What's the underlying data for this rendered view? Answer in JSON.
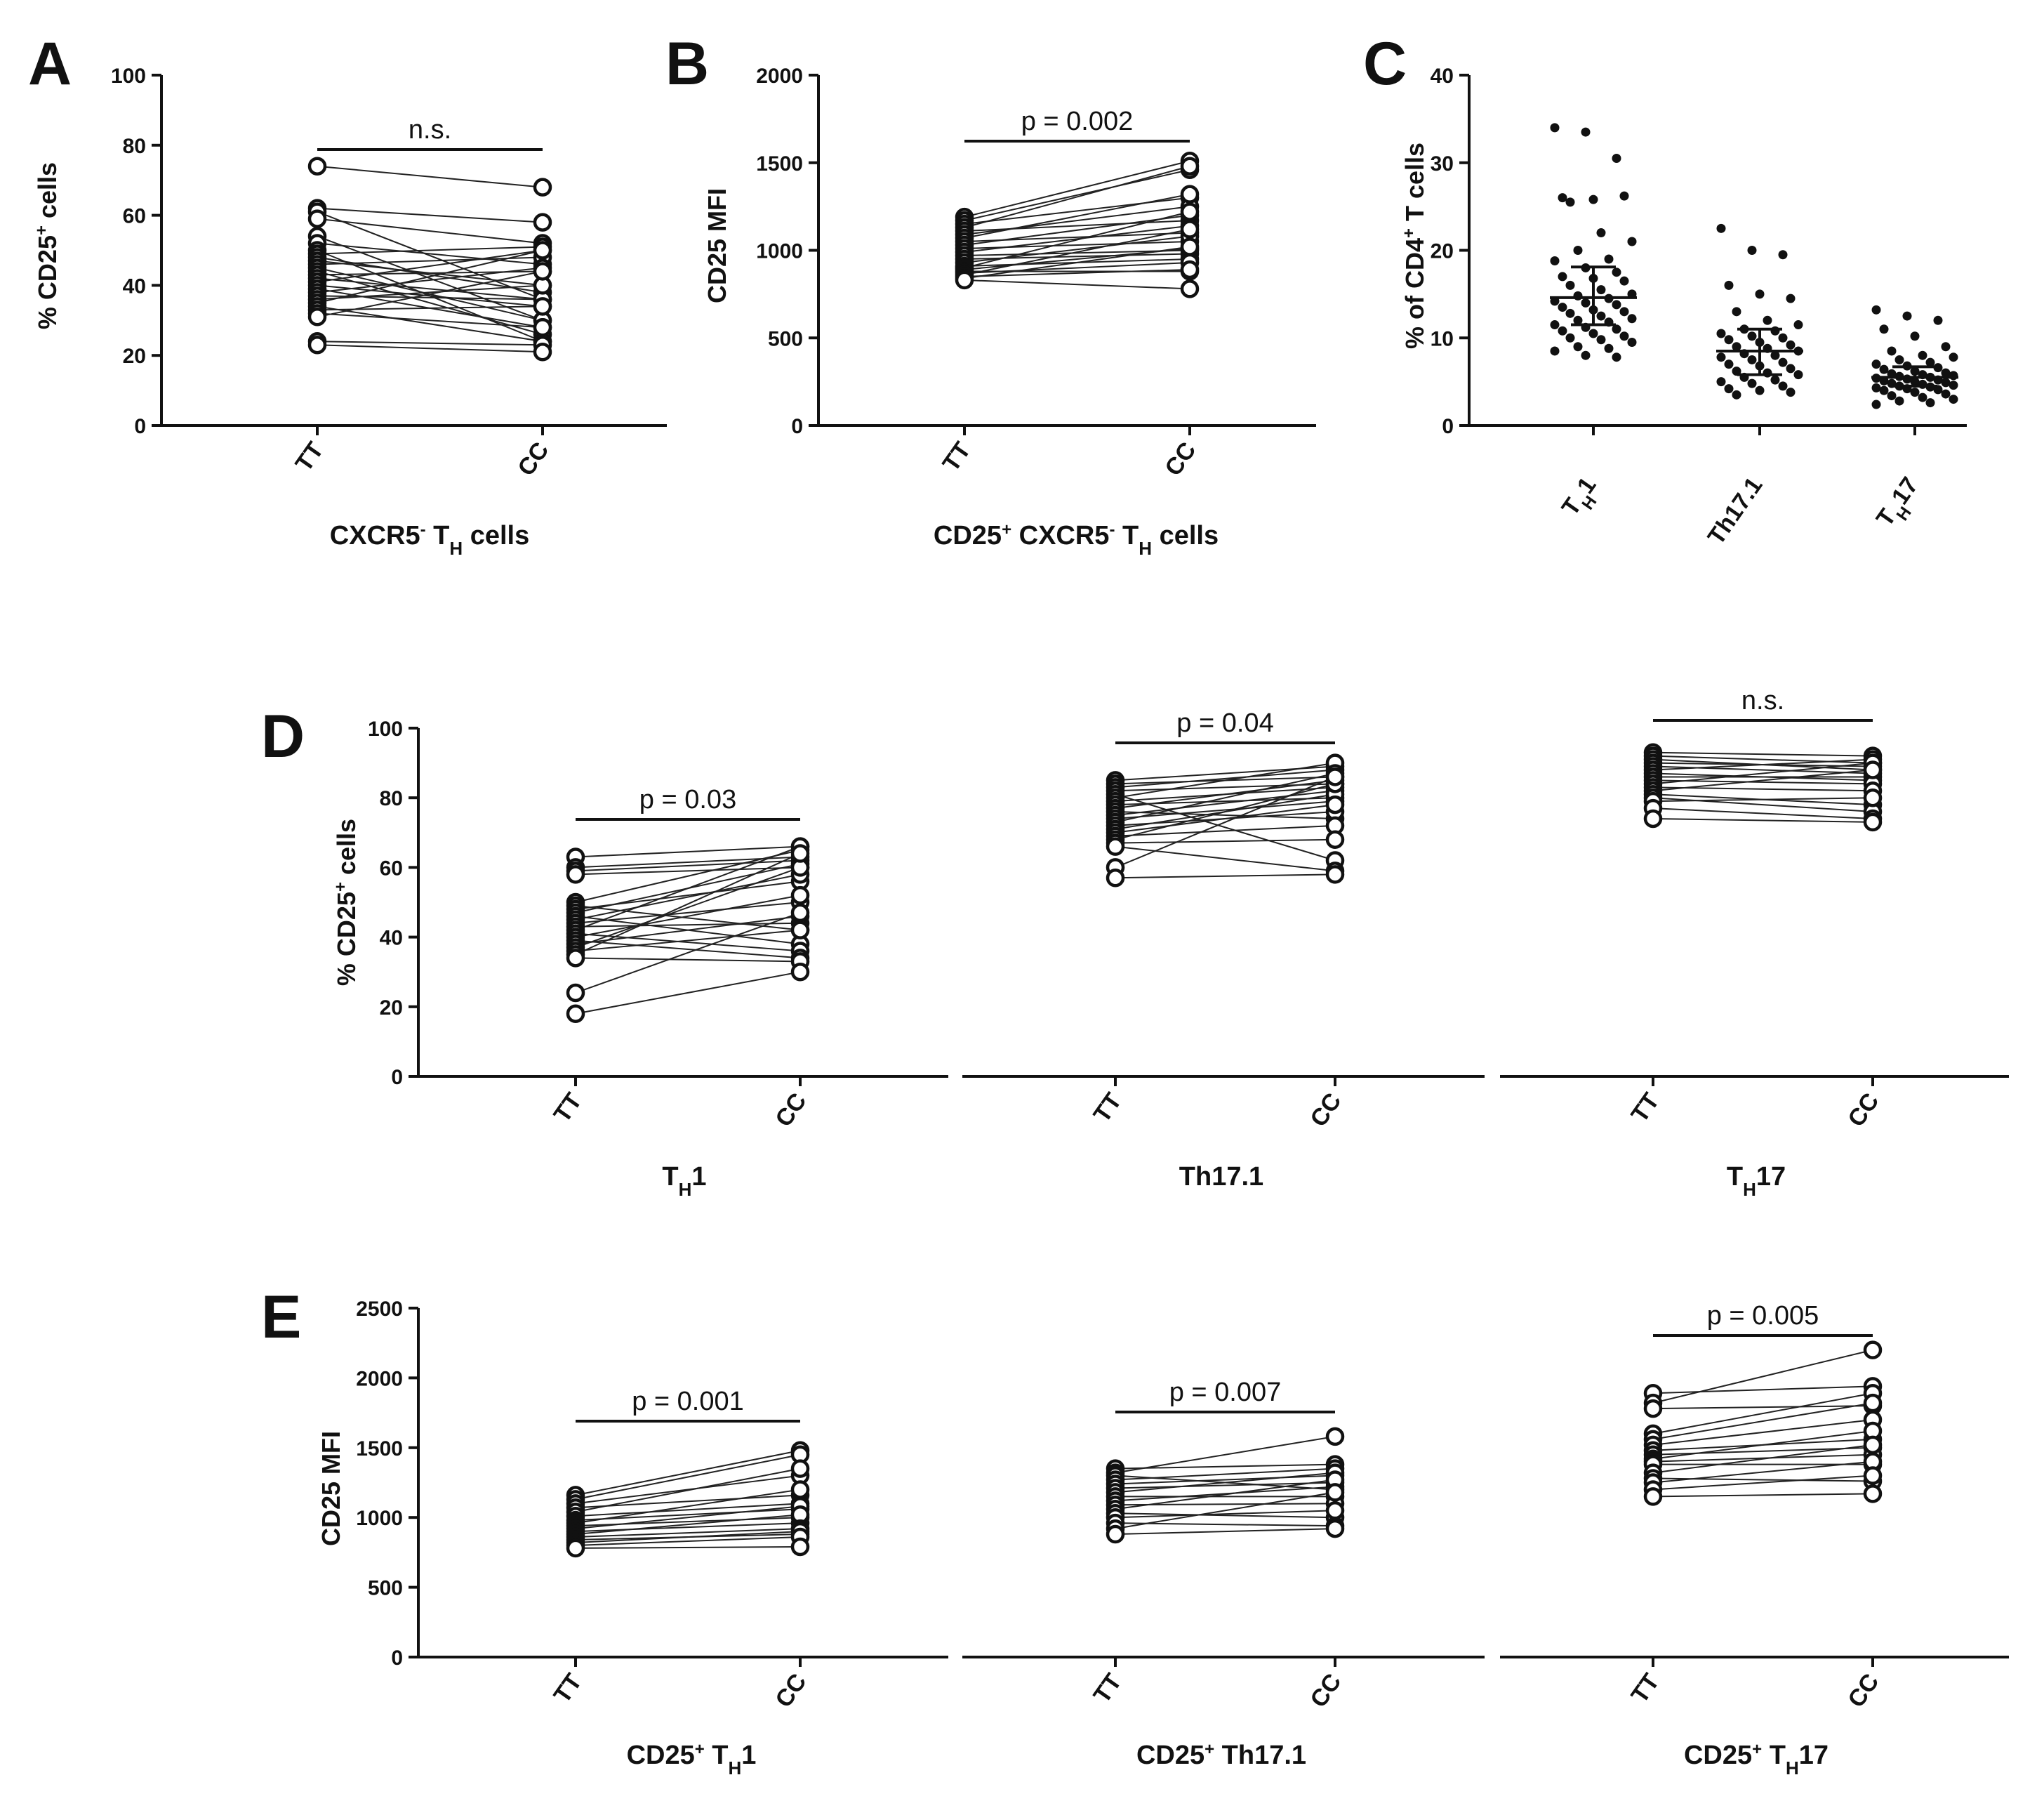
{
  "chart_data": [
    {
      "panel": "A",
      "type": "paired-scatter",
      "ylabel": "% CD25⁺ cells",
      "ylim": [
        0,
        100
      ],
      "yticks": [
        0,
        20,
        40,
        60,
        80,
        100
      ],
      "categories": [
        "TT",
        "CC"
      ],
      "xlabel": "CXCR5⁻ TH cells",
      "annotation": "n.s.",
      "pairs": [
        [
          74,
          68
        ],
        [
          62,
          58
        ],
        [
          61,
          36
        ],
        [
          59,
          52
        ],
        [
          54,
          30
        ],
        [
          52,
          46
        ],
        [
          50,
          24
        ],
        [
          49,
          51
        ],
        [
          48,
          38
        ],
        [
          47,
          40
        ],
        [
          46,
          48
        ],
        [
          45,
          30
        ],
        [
          44,
          26
        ],
        [
          43,
          44
        ],
        [
          42,
          36
        ],
        [
          41,
          50
        ],
        [
          40,
          34
        ],
        [
          39,
          28
        ],
        [
          38,
          45
        ],
        [
          37,
          36
        ],
        [
          36,
          40
        ],
        [
          35,
          50
        ],
        [
          34,
          24
        ],
        [
          33,
          34
        ],
        [
          32,
          28
        ],
        [
          31,
          44
        ],
        [
          24,
          23
        ],
        [
          23,
          21
        ]
      ]
    },
    {
      "panel": "B",
      "type": "paired-scatter",
      "ylabel": "CD25 MFI",
      "ylim": [
        0,
        2000
      ],
      "yticks": [
        0,
        500,
        1000,
        1500,
        2000
      ],
      "categories": [
        "TT",
        "CC"
      ],
      "xlabel": "CD25⁺ CXCR5⁻ TH cells",
      "annotation": "p = 0.002",
      "pairs": [
        [
          1190,
          1510
        ],
        [
          1170,
          1460
        ],
        [
          1150,
          1300
        ],
        [
          1130,
          1480
        ],
        [
          1110,
          1170
        ],
        [
          1090,
          1250
        ],
        [
          1070,
          1320
        ],
        [
          1050,
          1100
        ],
        [
          1030,
          1200
        ],
        [
          1010,
          1050
        ],
        [
          990,
          1140
        ],
        [
          970,
          1000
        ],
        [
          950,
          980
        ],
        [
          930,
          1080
        ],
        [
          910,
          950
        ],
        [
          900,
          1220
        ],
        [
          890,
          1010
        ],
        [
          880,
          880
        ],
        [
          870,
          930
        ],
        [
          860,
          1120
        ],
        [
          850,
          890
        ],
        [
          840,
          1020
        ],
        [
          830,
          780
        ]
      ]
    },
    {
      "panel": "C",
      "type": "scatter",
      "ylabel": "% of CD4⁺ T cells",
      "ylim": [
        0,
        40
      ],
      "yticks": [
        0,
        10,
        20,
        30,
        40
      ],
      "categories": [
        "TH1",
        "Th17.1",
        "TH17"
      ],
      "summary": [
        {
          "mean": 14.6,
          "sd_low": 11.5,
          "sd_high": 18.1
        },
        {
          "mean": 8.5,
          "sd_low": 5.8,
          "sd_high": 11.0
        },
        {
          "mean": 5.5,
          "sd_low": 4.5,
          "sd_high": 6.7
        }
      ],
      "points": [
        [
          34,
          33.5,
          30.5,
          26,
          25.8,
          26.2,
          25.5,
          22,
          21,
          20,
          19,
          18.8,
          18,
          17.5,
          17,
          16.8,
          16.5,
          16,
          15.5,
          15,
          14.8,
          14.5,
          14.2,
          14,
          13.8,
          13.5,
          13.2,
          13,
          12.8,
          12.5,
          12.2,
          12,
          11.8,
          11.5,
          11.2,
          11,
          10.8,
          10.5,
          10.2,
          10,
          9.8,
          9.5,
          9,
          8.8,
          8.5,
          8,
          7.8
        ],
        [
          22.5,
          20,
          19.5,
          16,
          15,
          14.5,
          13,
          12,
          11.5,
          11,
          10.8,
          10.5,
          10.2,
          10,
          9.8,
          9.5,
          9.2,
          9,
          8.8,
          8.5,
          8.2,
          8,
          7.8,
          7.5,
          7.2,
          7,
          6.8,
          6.5,
          6.2,
          6,
          5.8,
          5.5,
          5.2,
          5,
          4.8,
          4.5,
          4.2,
          4,
          3.8,
          3.5
        ],
        [
          13.2,
          12.5,
          12,
          11,
          10.2,
          9,
          8.5,
          8,
          7.8,
          7.5,
          7.2,
          7,
          6.8,
          6.6,
          6.4,
          6.2,
          6,
          5.9,
          5.8,
          5.7,
          5.6,
          5.5,
          5.4,
          5.3,
          5.2,
          5.1,
          5,
          4.9,
          4.8,
          4.7,
          4.6,
          4.5,
          4.4,
          4.3,
          4.2,
          4.1,
          4,
          3.8,
          3.6,
          3.4,
          3.2,
          3,
          2.8,
          2.6,
          2.4
        ]
      ]
    },
    {
      "panel": "D",
      "type": "paired-scatter",
      "ylabel": "% CD25⁺ cells",
      "ylim": [
        0,
        100
      ],
      "yticks": [
        0,
        20,
        40,
        60,
        80,
        100
      ],
      "groups": [
        {
          "xlabel": "TH1",
          "categories": [
            "TT",
            "CC"
          ],
          "annotation": "p = 0.03",
          "pairs": [
            [
              63,
              66
            ],
            [
              60,
              63
            ],
            [
              59,
              62
            ],
            [
              58,
              60
            ],
            [
              50,
              65
            ],
            [
              49,
              42
            ],
            [
              48,
              56
            ],
            [
              47,
              61
            ],
            [
              46,
              38
            ],
            [
              45,
              58
            ],
            [
              44,
              50
            ],
            [
              43,
              44
            ],
            [
              42,
              66
            ],
            [
              41,
              36
            ],
            [
              40,
              52
            ],
            [
              39,
              34
            ],
            [
              38,
              46
            ],
            [
              37,
              60
            ],
            [
              36,
              42
            ],
            [
              35,
              64
            ],
            [
              34,
              33
            ],
            [
              24,
              47
            ],
            [
              18,
              30
            ]
          ]
        },
        {
          "xlabel": "Th17.1",
          "categories": [
            "TT",
            "CC"
          ],
          "annotation": "p = 0.04",
          "pairs": [
            [
              85,
              89
            ],
            [
              84,
              86
            ],
            [
              83,
              88
            ],
            [
              82,
              84
            ],
            [
              81,
              62
            ],
            [
              80,
              90
            ],
            [
              79,
              83
            ],
            [
              78,
              80
            ],
            [
              77,
              85
            ],
            [
              76,
              74
            ],
            [
              75,
              82
            ],
            [
              74,
              79
            ],
            [
              73,
              87
            ],
            [
              72,
              76
            ],
            [
              71,
              81
            ],
            [
              70,
              78
            ],
            [
              69,
              72
            ],
            [
              68,
              84
            ],
            [
              67,
              68
            ],
            [
              66,
              59
            ],
            [
              60,
              86
            ],
            [
              57,
              58
            ]
          ]
        },
        {
          "xlabel": "TH17",
          "categories": [
            "TT",
            "CC"
          ],
          "annotation": "n.s.",
          "pairs": [
            [
              93,
              92
            ],
            [
              92,
              90
            ],
            [
              91,
              88
            ],
            [
              90,
              89
            ],
            [
              89,
              87
            ],
            [
              88,
              91
            ],
            [
              87,
              85
            ],
            [
              86,
              86
            ],
            [
              85,
              84
            ],
            [
              84,
              90
            ],
            [
              83,
              82
            ],
            [
              82,
              88
            ],
            [
              81,
              78
            ],
            [
              80,
              76
            ],
            [
              79,
              80
            ],
            [
              77,
              74
            ],
            [
              74,
              73
            ]
          ]
        }
      ]
    },
    {
      "panel": "E",
      "type": "paired-scatter",
      "ylabel": "CD25 MFI",
      "ylim": [
        0,
        2500
      ],
      "yticks": [
        0,
        500,
        1000,
        1500,
        2000,
        2500
      ],
      "groups": [
        {
          "xlabel": "CD25⁺ TH1",
          "categories": [
            "TT",
            "CC"
          ],
          "annotation": "p = 0.001",
          "pairs": [
            [
              1160,
              1480
            ],
            [
              1130,
              1450
            ],
            [
              1100,
              1300
            ],
            [
              1070,
              1160
            ],
            [
              1040,
              1350
            ],
            [
              1010,
              1100
            ],
            [
              980,
              1060
            ],
            [
              960,
              1200
            ],
            [
              940,
              1000
            ],
            [
              920,
              1080
            ],
            [
              900,
              960
            ],
            [
              880,
              1020
            ],
            [
              860,
              920
            ],
            [
              840,
              880
            ],
            [
              820,
              900
            ],
            [
              800,
              860
            ],
            [
              780,
              790
            ]
          ]
        },
        {
          "xlabel": "CD25⁺ Th17.1",
          "categories": [
            "TT",
            "CC"
          ],
          "annotation": "p = 0.007",
          "pairs": [
            [
              1350,
              1380
            ],
            [
              1320,
              1580
            ],
            [
              1300,
              1200
            ],
            [
              1270,
              1350
            ],
            [
              1240,
              1300
            ],
            [
              1210,
              1250
            ],
            [
              1180,
              1320
            ],
            [
              1150,
              1150
            ],
            [
              1120,
              1220
            ],
            [
              1090,
              1100
            ],
            [
              1060,
              1270
            ],
            [
              1030,
              1000
            ],
            [
              1000,
              1050
            ],
            [
              960,
              940
            ],
            [
              920,
              1180
            ],
            [
              880,
              920
            ]
          ]
        },
        {
          "xlabel": "CD25⁺ TH17",
          "categories": [
            "TT",
            "CC"
          ],
          "annotation": "p = 0.005",
          "pairs": [
            [
              1890,
              1940
            ],
            [
              1820,
              2200
            ],
            [
              1780,
              1800
            ],
            [
              1600,
              1890
            ],
            [
              1560,
              1820
            ],
            [
              1520,
              1700
            ],
            [
              1480,
              1560
            ],
            [
              1450,
              1500
            ],
            [
              1420,
              1620
            ],
            [
              1400,
              1450
            ],
            [
              1380,
              1380
            ],
            [
              1320,
              1520
            ],
            [
              1280,
              1260
            ],
            [
              1250,
              1400
            ],
            [
              1200,
              1300
            ],
            [
              1150,
              1170
            ]
          ]
        }
      ]
    }
  ],
  "text": {
    "A": "A",
    "B": "B",
    "C": "C",
    "D": "D",
    "E": "E",
    "A_ylabel": "% CD25",
    "A_sup": "+",
    "A_ylabel_tail": " cells",
    "A_xlabel_pre": "CXCR5",
    "A_xlabel_sup": "-",
    "A_xlabel_mid": " T",
    "A_xlabel_sub": "H",
    "A_xlabel_tail": " cells",
    "B_ylabel": "CD25 MFI",
    "B_xlabel_pre": "CD25",
    "B_xlabel_sup1": "+",
    "B_xlabel_mid1": " CXCR5",
    "B_xlabel_sup2": "-",
    "B_xlabel_mid2": " T",
    "B_xlabel_sub": "H",
    "B_xlabel_tail": " cells",
    "C_ylabel_pre": "% of CD4",
    "C_ylabel_sup": "+",
    "C_ylabel_tail": " T cells",
    "C_cat1_T": "T",
    "C_cat1_sub": "H",
    "C_cat1_tail": "1",
    "C_cat2": "Th17.1",
    "C_cat3_T": "T",
    "C_cat3_sub": "H",
    "C_cat3_tail": "17",
    "D_ylabel": "% CD25",
    "D_sup": "+",
    "D_ylabel_tail": " cells",
    "D_x1_T": "T",
    "D_x1_sub": "H",
    "D_x1_tail": "1",
    "D_x2": "Th17.1",
    "D_x3_T": "T",
    "D_x3_sub": "H",
    "D_x3_tail": "17",
    "E_ylabel": "CD25 MFI",
    "E_x1_pre": "CD25",
    "E_x1_sup": "+",
    "E_x1_T": " T",
    "E_x1_sub": "H",
    "E_x1_tail": "1",
    "E_x2_pre": "CD25",
    "E_x2_sup": "+",
    "E_x2_tail": " Th17.1",
    "E_x3_pre": "CD25",
    "E_x3_sup": "+",
    "E_x3_T": " T",
    "E_x3_sub": "H",
    "E_x3_tail": "17"
  }
}
